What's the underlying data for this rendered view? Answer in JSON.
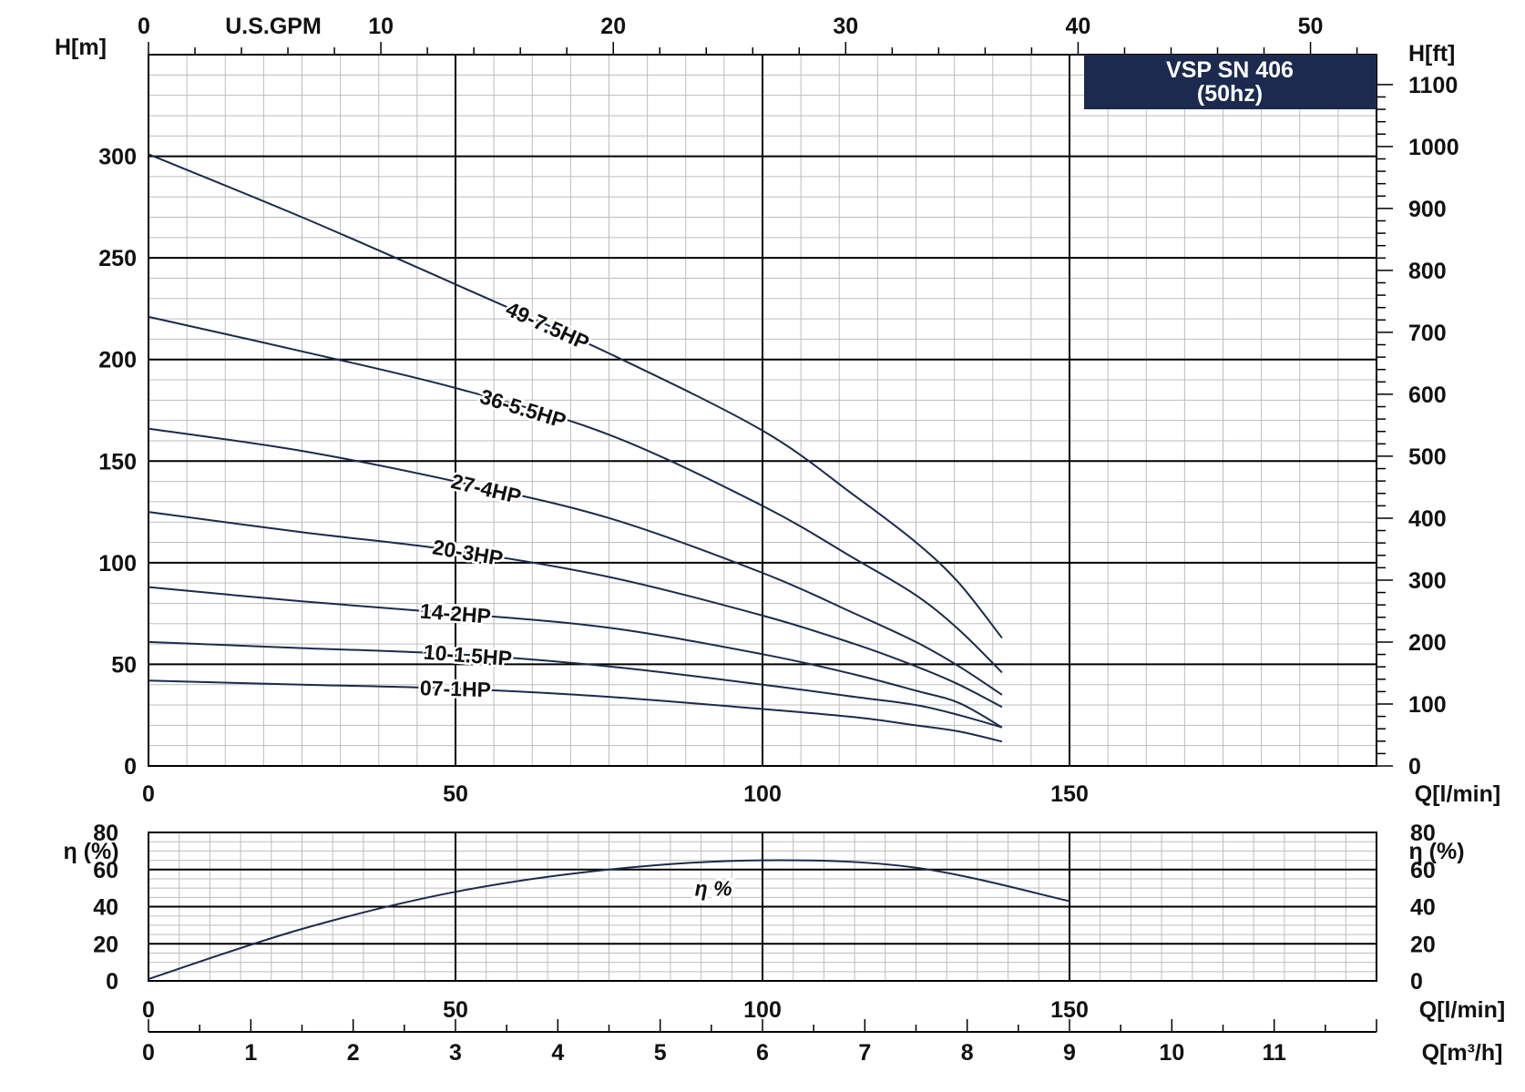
{
  "chart_data": [
    {
      "type": "line",
      "title": "VSP SN 406",
      "subtitle": "(50hz)",
      "xlabel": "Q[l/min]",
      "ylabel": "H[m]",
      "y2label": "H[ft]",
      "x2label": "U.S.GPM",
      "xlim": [
        0,
        200
      ],
      "ylim": [
        0,
        350
      ],
      "x_ticks": [
        "0",
        "50",
        "100",
        "150"
      ],
      "y_ticks": [
        "0",
        "50",
        "100",
        "150",
        "200",
        "250",
        "300"
      ],
      "y2_ticks": [
        "0",
        "100",
        "200",
        "300",
        "400",
        "500",
        "600",
        "700",
        "800",
        "900",
        "1000",
        "1100"
      ],
      "x2_ticks": [
        "0",
        "10",
        "20",
        "30",
        "40",
        "50"
      ],
      "grid": true,
      "series": [
        {
          "name": "49-7.5HP",
          "x": [
            0,
            25,
            50,
            75,
            100,
            115,
            125,
            132,
            139
          ],
          "y": [
            301,
            270,
            237,
            203,
            165,
            133,
            110,
            90,
            63
          ]
        },
        {
          "name": "36-5.5HP",
          "x": [
            0,
            25,
            50,
            75,
            100,
            115,
            125,
            132,
            139
          ],
          "y": [
            221,
            204,
            186,
            163,
            128,
            102,
            84,
            67,
            46
          ]
        },
        {
          "name": "27-4HP",
          "x": [
            0,
            25,
            50,
            75,
            100,
            115,
            125,
            132,
            139
          ],
          "y": [
            166,
            155,
            140,
            122,
            95,
            75,
            61,
            49,
            35
          ]
        },
        {
          "name": "20-3HP",
          "x": [
            0,
            25,
            50,
            75,
            100,
            115,
            125,
            132,
            139
          ],
          "y": [
            125,
            115,
            106,
            93,
            74,
            60,
            49,
            40,
            29
          ]
        },
        {
          "name": "14-2HP",
          "x": [
            0,
            25,
            50,
            75,
            100,
            115,
            125,
            132,
            139
          ],
          "y": [
            88,
            81,
            75,
            68,
            55,
            45,
            37,
            31,
            19
          ]
        },
        {
          "name": "10-1.5HP",
          "x": [
            0,
            25,
            50,
            75,
            100,
            115,
            125,
            132,
            139
          ],
          "y": [
            61,
            58,
            55,
            49,
            40,
            34,
            30,
            25,
            19
          ]
        },
        {
          "name": "07-1HP",
          "x": [
            0,
            25,
            50,
            75,
            100,
            115,
            125,
            132,
            139
          ],
          "y": [
            42,
            40,
            38,
            34,
            28,
            24,
            20,
            17,
            12
          ]
        }
      ]
    },
    {
      "type": "line",
      "xlabel": "Q[l/min]",
      "x2label": "Q[m³/h]",
      "ylabel": "η (%)",
      "xlim": [
        0,
        200
      ],
      "ylim": [
        0,
        80
      ],
      "x_ticks": [
        "0",
        "50",
        "100",
        "150"
      ],
      "x2_ticks": [
        "0",
        "1",
        "2",
        "3",
        "4",
        "5",
        "6",
        "7",
        "8",
        "9",
        "10",
        "11"
      ],
      "y_ticks": [
        "0",
        "20",
        "40",
        "60",
        "80"
      ],
      "grid": true,
      "series": [
        {
          "name": "η %",
          "x": [
            0,
            25,
            50,
            75,
            100,
            125,
            150
          ],
          "y": [
            1,
            28,
            48,
            60,
            65,
            61,
            43
          ]
        }
      ]
    }
  ],
  "colors": {
    "curve": "#1b2a4e",
    "title_bg": "#1b2a4e",
    "grid_minor": "#bdbdbd",
    "grid_major": "#000000"
  }
}
